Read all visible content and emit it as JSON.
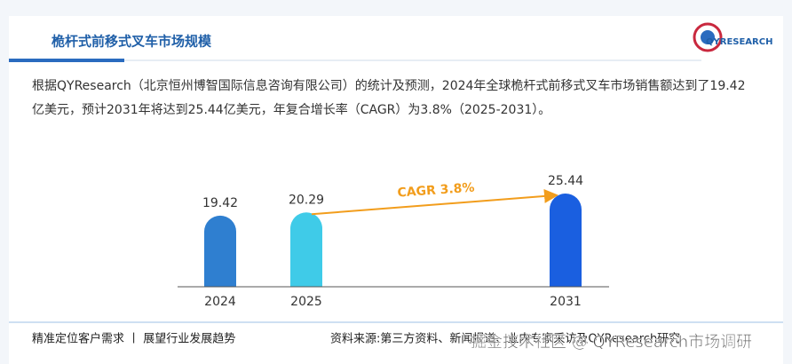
{
  "header": {
    "title": "桅杆式前移式叉车市场规模",
    "logo": "QYRESEARCH"
  },
  "description": "根据QYResearch（北京恒州博智国际信息咨询有限公司）的统计及预测，2024年全球桅杆式前移式叉车市场销售额达到了19.42亿美元，预计2031年将达到25.44亿美元，年复合增长率（CAGR）为3.8%（2025-2031）。",
  "chart_data": {
    "type": "bar",
    "categories": [
      "2024",
      "2025",
      "2031"
    ],
    "values": [
      19.42,
      20.29,
      25.44
    ],
    "colors": [
      "#2f7fd0",
      "#3fcbe8",
      "#1a5fe0"
    ],
    "annotation": "CAGR 3.8%",
    "annotation_color": "#f29d1c"
  },
  "footer": {
    "left": "精准定位客户需求 丨 展望行业发展趋势",
    "source": "资料来源:第三方资料、新闻报道、业内专家采访及QYResearch研究",
    "watermark": "掘金技术社区 @ QYResearch市场调研"
  }
}
